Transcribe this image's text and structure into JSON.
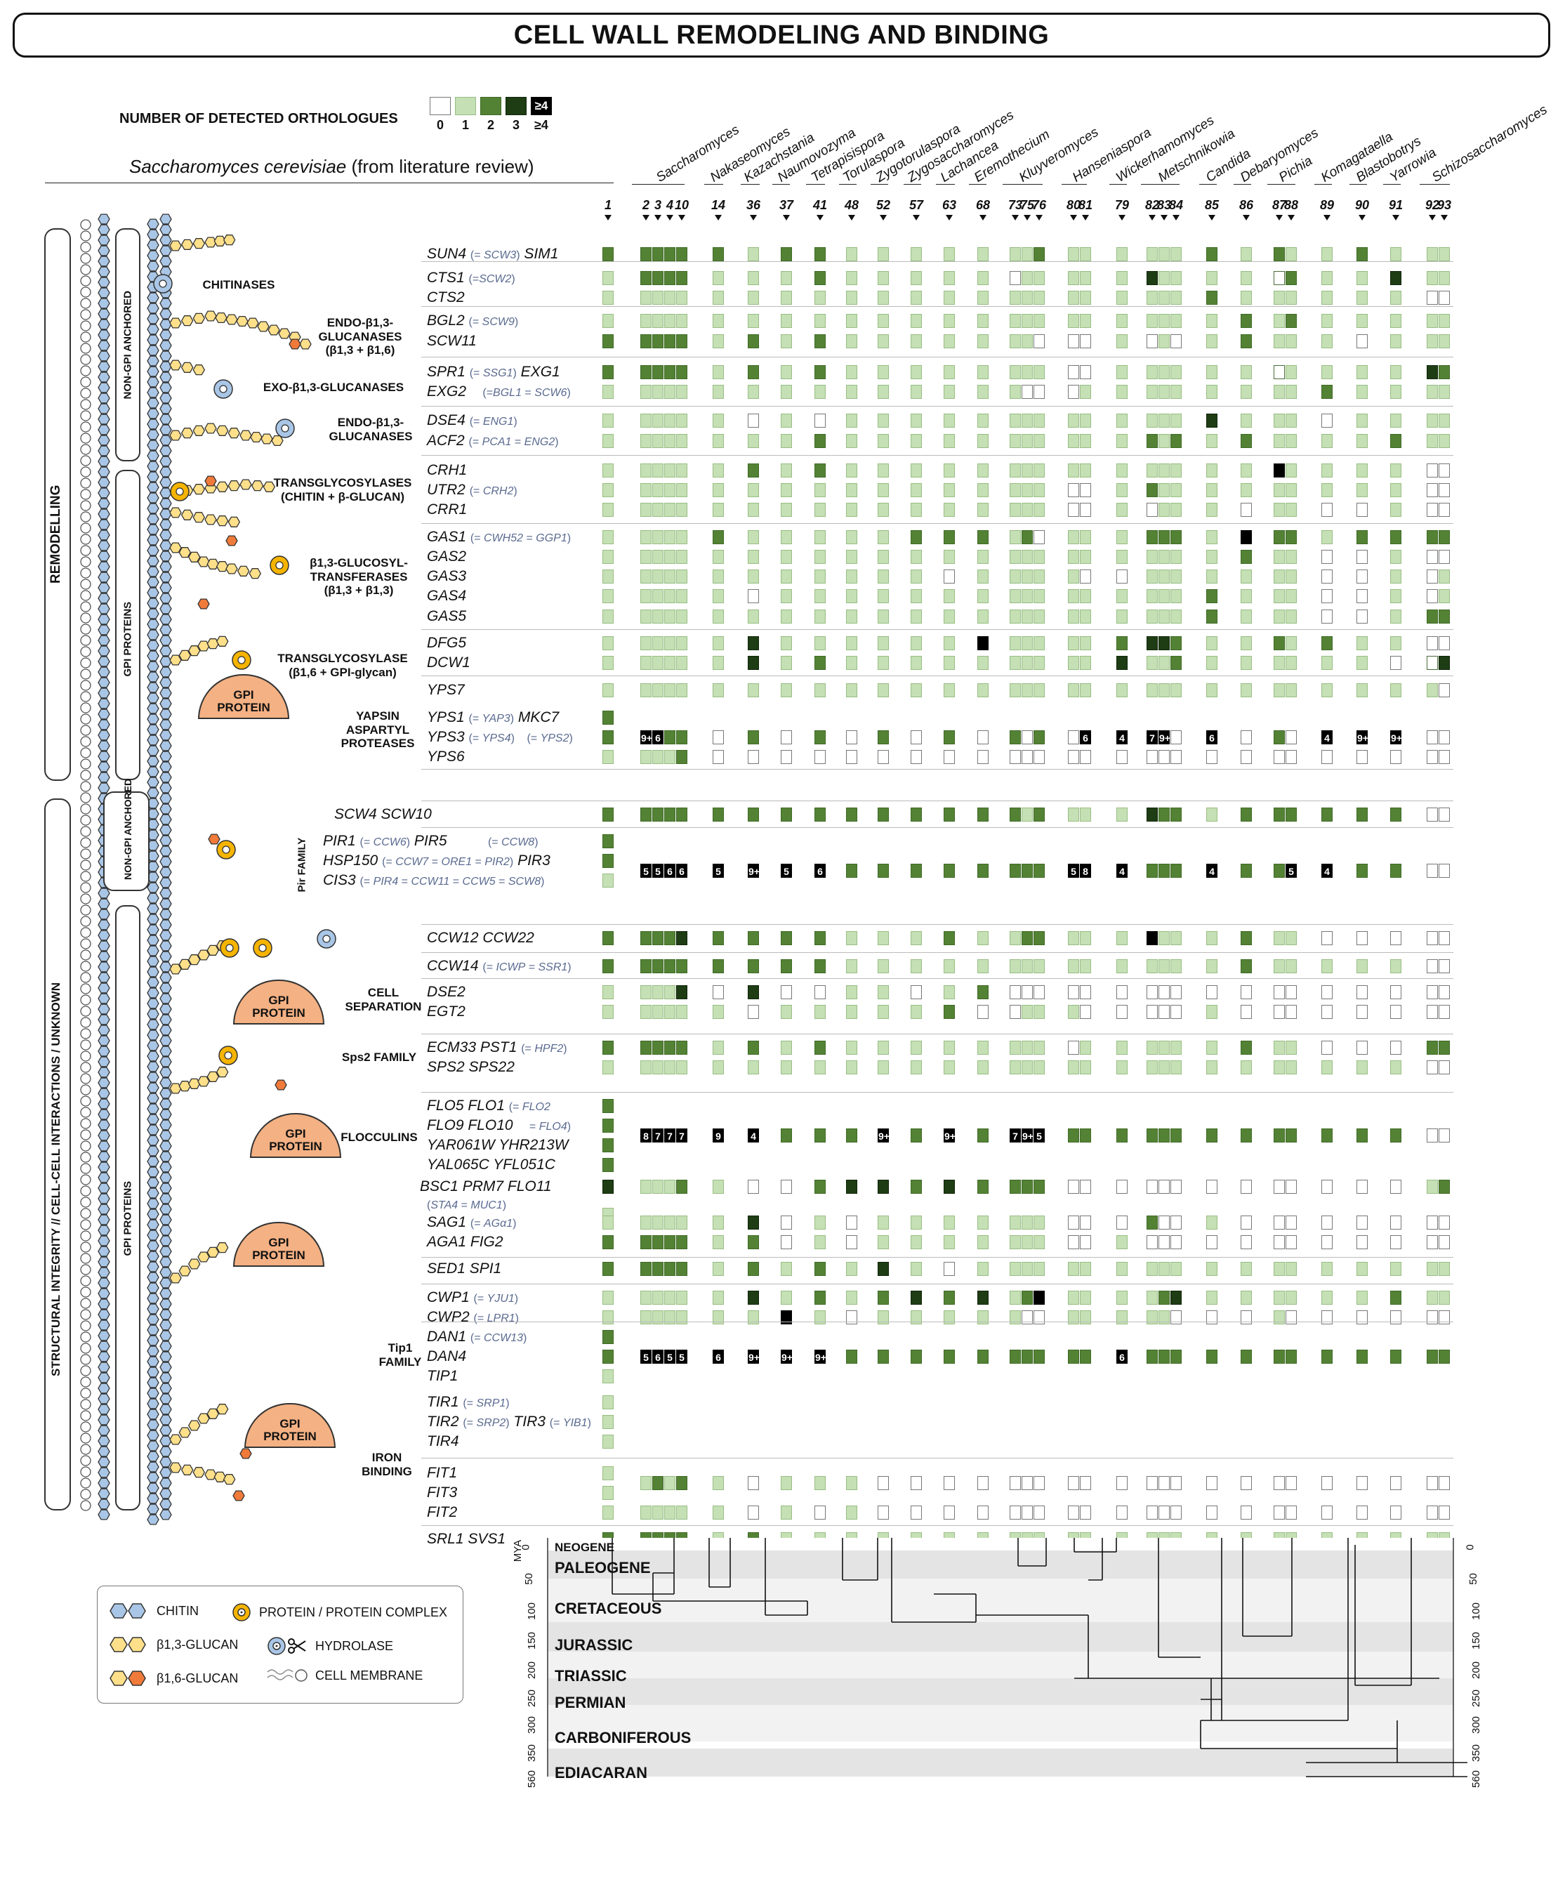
{
  "title": "CELL WALL REMODELING AND BINDING",
  "legend": {
    "title": "NUMBER OF DETECTED ORTHOLOGUES",
    "levels": [
      "0",
      "1",
      "2",
      "3",
      "≥4"
    ],
    "box_label": "≥4",
    "colors": {
      "0": "#ffffff",
      "1": "#c5e0b4",
      "2": "#548235",
      "3": "#1e3d14",
      "4": "#000000"
    }
  },
  "sc_header": {
    "species": "Saccharomyces cerevisiae",
    "suffix": " (from literature review)"
  },
  "genera": [
    "Saccharomyces",
    "Nakaseomyces",
    "Kazachstania",
    "Naumovozyma",
    "Tetrapisispora",
    "Torulaspora",
    "Zygotorulaspora",
    "Zygosaccharomyces",
    "Lachancea",
    "Eremothecium",
    "Kluyveromyces",
    "Hanseniaspora",
    "Wickerhamomyces",
    "Metschnikowia",
    "Candida",
    "Debaryomyces",
    "Pichia",
    "Komagataella",
    "Blastobotrys",
    "Yarrowia",
    "Schizosaccharomyces"
  ],
  "species_numbers": [
    "1",
    "2",
    "3",
    "4",
    "10",
    "14",
    "36",
    "37",
    "41",
    "48",
    "52",
    "57",
    "63",
    "68",
    "73",
    "75",
    "76",
    "80",
    "81",
    "79",
    "82",
    "83",
    "84",
    "85",
    "86",
    "87",
    "88",
    "89",
    "90",
    "91",
    "92",
    "93"
  ],
  "left_labels": {
    "remodelling": "REMODELLING",
    "structural": "STRUCTURAL INTEGRITY // CELL-CELL INTERACTIONS / UNKNOWN",
    "non_gpi_1": "NON-GPI ANCHORED",
    "gpi_1": "GPI PROTEINS",
    "non_gpi_2": "NON-GPI ANCHORED",
    "gpi_2": "GPI PROTEINS",
    "pir_family": "Pir FAMILY"
  },
  "function_labels": [
    {
      "text": "CHITINASES"
    },
    {
      "text": "ENDO-β1,3-\nGLUCANASES\n(β1,3 + β1,6)"
    },
    {
      "text": "EXO-β1,3-GLUCANASES"
    },
    {
      "text": "ENDO-β1,3-\nGLUCANASES"
    },
    {
      "text": "TRANSGLYCOSYLASES\n(CHITIN + β-GLUCAN)"
    },
    {
      "text": "β1,3-GLUCOSYL-\nTRANSFERASES\n(β1,3 + β1,3)"
    },
    {
      "text": "TRANSGLYCOSYLASE\n(β1,6 + GPI-glycan)"
    },
    {
      "text": "YAPSIN\nASPARTYL\nPROTEASES"
    },
    {
      "text": "CELL\nSEPARATION"
    },
    {
      "text": "Sps2 FAMILY"
    },
    {
      "text": "FLOCCULINS"
    },
    {
      "text": "Tip1 FAMILY"
    },
    {
      "text": "IRON\nBINDING"
    }
  ],
  "gpi_protein_label": "GPI\nPROTEIN",
  "genes": [
    {
      "html": "SUN4 <span class='syn'>(= <i>SCW3</i>)</span> SIM1"
    },
    {
      "html": "CTS1 <span class='syn'>(=<i>SCW2</i>)</span>"
    },
    {
      "html": "CTS2"
    },
    {
      "html": "BGL2 <span class='syn'>(= <i>SCW9</i>)</span>"
    },
    {
      "html": "SCW11"
    },
    {
      "html": "SPR1 <span class='syn'>(= <i>SSG1</i>)</span> EXG1"
    },
    {
      "html": "EXG2 &nbsp;&nbsp;&nbsp;<span class='syn'>(=<i>BGL1</i> = <i>SCW6</i>)</span>"
    },
    {
      "html": "DSE4 <span class='syn'>(= <i>ENG1</i>)</span>"
    },
    {
      "html": "ACF2 <span class='syn'>(= <i>PCA1</i> = <i>ENG2</i>)</span>"
    },
    {
      "html": "CRH1"
    },
    {
      "html": "UTR2 <span class='syn'>(= <i>CRH2</i>)</span>"
    },
    {
      "html": "CRR1"
    },
    {
      "html": "GAS1 <span class='syn'>(= <i>CWH52</i> = <i>GGP1</i>)</span>"
    },
    {
      "html": "GAS2"
    },
    {
      "html": "GAS3"
    },
    {
      "html": "GAS4"
    },
    {
      "html": "GAS5"
    },
    {
      "html": "DFG5"
    },
    {
      "html": "DCW1"
    },
    {
      "html": "YPS7"
    },
    {
      "html": "YPS1 <span class='syn'>(= <i>YAP3</i>)</span> MKC7"
    },
    {
      "html": "YPS3 <span class='syn'>(= <i>YPS4</i>)</span> &nbsp;&nbsp;<span class='syn'>(= <i>YPS2</i>)</span>"
    },
    {
      "html": "YPS6"
    },
    {
      "html": "SCW4 SCW10"
    },
    {
      "html": "PIR1 <span class='syn'>(= <i>CCW6</i>)</span> PIR5 &nbsp;&nbsp;&nbsp;&nbsp;&nbsp;&nbsp;&nbsp;&nbsp;&nbsp;<span class='syn'>(= <i>CCW8</i>)</span>"
    },
    {
      "html": "HSP150 <span class='syn'>(= <i>CCW7</i> = <i>ORE1</i> = <i>PIR2</i>)</span> PIR3"
    },
    {
      "html": "CIS3 <span class='syn'>(= <i>PIR4</i> = <i>CCW11</i> = <i>CCW5</i> = <i>SCW8</i>)</span>"
    },
    {
      "html": "CCW12 CCW22"
    },
    {
      "html": "CCW14 <span class='syn'>(= <i>ICWP</i> = <i>SSR1</i>)</span>"
    },
    {
      "html": "DSE2"
    },
    {
      "html": "EGT2"
    },
    {
      "html": "ECM33 PST1 <span class='syn'>(= <i>HPF2</i>)</span>"
    },
    {
      "html": "SPS2 SPS22"
    },
    {
      "html": "FLO5 FLO1 <span class='syn'>(= <i>FLO2</i></span>"
    },
    {
      "html": "FLO9 FLO10 &nbsp;&nbsp;&nbsp;<span class='syn'>= <i>FLO4</i>)</span>"
    },
    {
      "html": "YAR061W YHR213W"
    },
    {
      "html": "YAL065C YFL051C"
    },
    {
      "html": "BSC1 PRM7 FLO11"
    },
    {
      "html": "<span class='syn'>(<i>STA4</i> = <i>MUC1</i>)</span>"
    },
    {
      "html": "SAG1 <span class='syn'>(= <i>AGα1</i>)</span>"
    },
    {
      "html": "AGA1 FIG2"
    },
    {
      "html": "SED1 SPI1"
    },
    {
      "html": "CWP1 <span class='syn'>(= <i>YJU1</i>)</span>"
    },
    {
      "html": "CWP2 <span class='syn'>(= <i>LPR1</i>)</span>"
    },
    {
      "html": "DAN1 <span class='syn'>(= <i>CCW13</i>)</span>"
    },
    {
      "html": "DAN4"
    },
    {
      "html": "TIP1"
    },
    {
      "html": "TIR1 <span class='syn'>(= <i>SRP1</i>)</span>"
    },
    {
      "html": "TIR2 <span class='syn'>(= <i>SRP2</i>)</span> TIR3 <span class='syn'>(= <i>YIB1</i>)</span>"
    },
    {
      "html": "TIR4"
    },
    {
      "html": "FIT1"
    },
    {
      "html": "FIT3"
    },
    {
      "html": "FIT2"
    },
    {
      "html": "SRL1 SVS1"
    }
  ],
  "big_numbers": [
    {
      "row": "YPS1",
      "values": [
        "9+",
        "6",
        "",
        "",
        "",
        "",
        "",
        "",
        "",
        "",
        "",
        "6",
        "4",
        "7",
        "9+",
        "6",
        "4",
        "9+",
        "9+"
      ]
    },
    {
      "row": "Pir",
      "values": [
        "5",
        "5",
        "6",
        "6",
        "5",
        "9+",
        "5",
        "6",
        "5",
        "8",
        "4",
        "4",
        "5",
        "4"
      ]
    },
    {
      "row": "Flocculins",
      "values": [
        "8",
        "7",
        "7",
        "7",
        "9",
        "4",
        "9+",
        "9+",
        "7",
        "9+",
        "5"
      ]
    },
    {
      "row": "Tip1",
      "values": [
        "5",
        "6",
        "5",
        "5",
        "6",
        "9+",
        "9+",
        "9+",
        "6"
      ]
    }
  ],
  "geology": {
    "axis_label": "MYA",
    "periods": [
      "NEOGENE",
      "PALEOGENE",
      "CRETACEOUS",
      "JURASSIC",
      "TRIASSIC",
      "PERMIAN",
      "CARBONIFEROUS",
      "EDIACARAN"
    ],
    "ticks": [
      "0",
      "50",
      "100",
      "150",
      "200",
      "250",
      "300",
      "350",
      "560"
    ]
  },
  "bottom_legend": {
    "chitin": "CHITIN",
    "protein": "PROTEIN / PROTEIN COMPLEX",
    "b13": "β1,3-GLUCAN",
    "hydrolase": "HYDROLASE",
    "b16": "β1,6-GLUCAN",
    "membrane": "CELL MEMBRANE"
  }
}
